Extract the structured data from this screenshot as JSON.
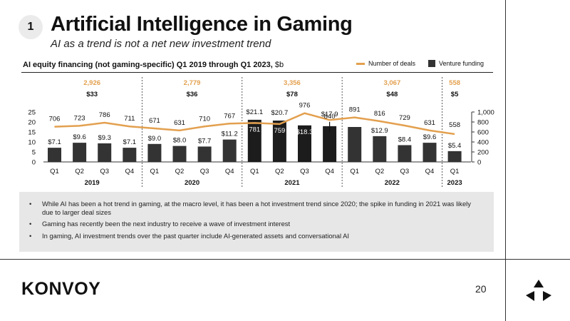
{
  "page": {
    "badge": "1",
    "title": "Artificial Intelligence in Gaming",
    "subtitle": "AI as a trend is not a net new investment trend",
    "chart_title": "AI equity financing (not gaming-specific) Q1 2019 through Q1 2023,",
    "chart_unit": "$b",
    "legend": {
      "deals": "Number of deals",
      "funding": "Venture funding"
    },
    "bullets": [
      "While AI has been a hot trend in gaming, at the macro level, it has been a hot investment trend since 2020; the spike in funding in 2021 was likely due to larger deal sizes",
      "Gaming has recently been the next industry to receive a wave of investment interest",
      "In gaming, AI investment trends over the past quarter include AI-generated assets and conversational AI"
    ],
    "logo": "KONVOY",
    "page_number": "20"
  },
  "colors": {
    "line": "#e3a04f",
    "bar_light": "#333333",
    "bar_dark": "#1c1c1c",
    "accent": "#e3a04f"
  },
  "chart_data": {
    "type": "bar",
    "categories": [
      "Q1",
      "Q2",
      "Q3",
      "Q4",
      "Q1",
      "Q2",
      "Q3",
      "Q4",
      "Q1",
      "Q2",
      "Q3",
      "Q4",
      "Q1",
      "Q2",
      "Q3",
      "Q4",
      "Q1"
    ],
    "years": [
      {
        "label": "2019",
        "deals_total": "2,926",
        "funding_total": "$33"
      },
      {
        "label": "2020",
        "deals_total": "2,779",
        "funding_total": "$36"
      },
      {
        "label": "2021",
        "deals_total": "3,356",
        "funding_total": "$78"
      },
      {
        "label": "2022",
        "deals_total": "3,067",
        "funding_total": "$48"
      },
      {
        "label": "2023",
        "deals_total": "558",
        "funding_total": "$5"
      }
    ],
    "series": [
      {
        "name": "Venture funding",
        "type": "bar",
        "axis": "left",
        "values": [
          7.1,
          9.6,
          9.3,
          7.1,
          9.0,
          8.0,
          7.7,
          11.2,
          21.1,
          20.7,
          18.3,
          17.9,
          17.5,
          12.9,
          8.4,
          9.6,
          5.4
        ],
        "labels": [
          "$7.1",
          "$9.6",
          "$9.3",
          "$7.1",
          "$9.0",
          "$8.0",
          "$7.7",
          "$11.2",
          "$21.1",
          "$20.7",
          "$18.3",
          "$17.9",
          "$17.5",
          "$12.9",
          "$8.4",
          "$9.6",
          "$5.4"
        ]
      },
      {
        "name": "Number of deals",
        "type": "line",
        "axis": "right",
        "values": [
          706,
          723,
          786,
          711,
          671,
          631,
          710,
          767,
          781,
          759,
          976,
          840,
          891,
          816,
          729,
          631,
          558
        ],
        "labels": [
          "706",
          "723",
          "786",
          "711",
          "671",
          "631",
          "710",
          "767",
          "781",
          "759",
          "976",
          "840",
          "891",
          "816",
          "729",
          "631",
          "558"
        ]
      }
    ],
    "y_left": {
      "lim": [
        0,
        25
      ],
      "ticks": [
        "0",
        "5",
        "10",
        "15",
        "20",
        "25"
      ]
    },
    "y_right": {
      "lim": [
        0,
        1000
      ],
      "ticks": [
        "0",
        "200",
        "400",
        "600",
        "800",
        "1,000"
      ]
    },
    "legend_position": "top-right"
  }
}
